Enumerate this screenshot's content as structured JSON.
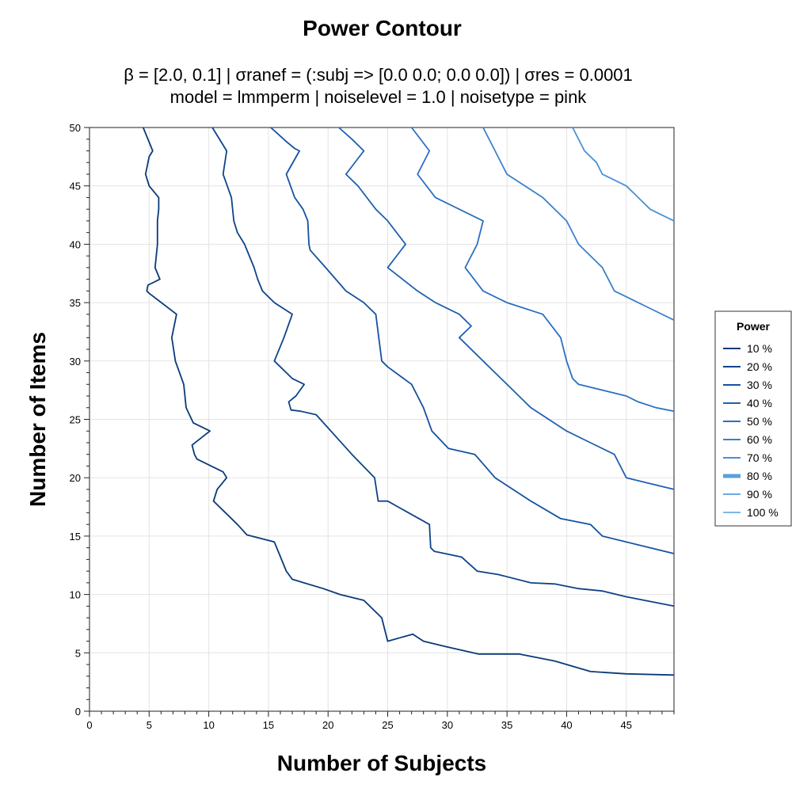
{
  "chart_data": {
    "type": "line",
    "title": "Power Contour",
    "subtitle_line1": "β = [2.0, 0.1]   |   σranef = (:subj => [0.0 0.0; 0.0 0.0])   |   σres = 0.0001",
    "subtitle_line2": "model = lmmperm   |   noiselevel = 1.0   |   noisetype = pink",
    "xlabel": "Number of Subjects",
    "ylabel": "Number of Items",
    "xlim": [
      0,
      49
    ],
    "ylim": [
      0,
      50
    ],
    "xticks": [
      0,
      5,
      10,
      15,
      20,
      25,
      30,
      35,
      40,
      45
    ],
    "yticks": [
      0,
      5,
      10,
      15,
      20,
      25,
      30,
      35,
      40,
      45,
      50
    ],
    "grid": true,
    "legend": {
      "title": "Power",
      "position": "right",
      "entries": [
        "10 %",
        "20 %",
        "30 %",
        "40 %",
        "50 %",
        "60 %",
        "70 %",
        "80 %",
        "90 %",
        "100 %"
      ]
    },
    "series": [
      {
        "name": "10 %",
        "color": "#0a3a78",
        "x": [
          4.5,
          5.3,
          5.0,
          4.7,
          5.0,
          5.8,
          5.8,
          5.7,
          5.7,
          5.7,
          5.6,
          5.5,
          5.9,
          4.9,
          4.8,
          5.0,
          7.3,
          6.9,
          7.2,
          7.9,
          8.0,
          8.1,
          8.7,
          10.1,
          8.6,
          8.8,
          9.0,
          11.2,
          11.5,
          10.7,
          10.4,
          12.4,
          13.2,
          15.5,
          16.5,
          17.0,
          19.6,
          21.0,
          23.0,
          24.5,
          25.0,
          27.1,
          28.0,
          30.0,
          32.6,
          36.0,
          39.0,
          42.0,
          45.0,
          49.0
        ],
        "y": [
          50.0,
          48.0,
          47.5,
          46.0,
          45.0,
          44.0,
          43.0,
          42.0,
          41.0,
          40.0,
          39.0,
          38.0,
          37.0,
          36.5,
          36.0,
          35.8,
          34.0,
          32.0,
          30.0,
          28.0,
          27.0,
          26.0,
          24.7,
          24.0,
          22.8,
          22.0,
          21.6,
          20.5,
          20.0,
          19.0,
          18.0,
          16.0,
          15.1,
          14.5,
          12.0,
          11.3,
          10.5,
          10.0,
          9.5,
          8.0,
          6.0,
          6.6,
          6.0,
          5.5,
          4.9,
          4.9,
          4.3,
          3.4,
          3.2,
          3.1
        ]
      },
      {
        "name": "20 %",
        "color": "#0d4488",
        "x": [
          10.3,
          11.5,
          11.2,
          11.9,
          12.0,
          12.1,
          12.4,
          13.0,
          13.8,
          14.1,
          14.5,
          15.5,
          17.0,
          16.3,
          15.5,
          17.0,
          18.0,
          17.3,
          16.7,
          16.9,
          17.7,
          19.0,
          22.0,
          23.9,
          24.2,
          25.0,
          28.5,
          28.6,
          28.9,
          31.2,
          32.5,
          34.3,
          37.0,
          39.0,
          41.0,
          43.0,
          45.0,
          49.0
        ],
        "y": [
          50.0,
          48.0,
          46.0,
          44.0,
          43.0,
          42.0,
          41.0,
          40.0,
          38.0,
          37.0,
          36.0,
          35.0,
          34.0,
          32.0,
          30.0,
          28.5,
          28.0,
          27.0,
          26.5,
          25.8,
          25.7,
          25.4,
          22.0,
          20.0,
          18.0,
          18.0,
          16.0,
          14.0,
          13.7,
          13.2,
          12.0,
          11.7,
          11.0,
          10.9,
          10.5,
          10.3,
          9.8,
          9.0
        ]
      },
      {
        "name": "30 %",
        "color": "#1552a1",
        "x": [
          15.2,
          16.5,
          17.2,
          17.6,
          16.5,
          17.2,
          17.9,
          18.3,
          18.4,
          18.5,
          19.8,
          21.5,
          23.0,
          23.5,
          24.0,
          24.5,
          25.0,
          27.0,
          28.0,
          28.7,
          30.1,
          32.3,
          34.0,
          37.0,
          39.5,
          42.0,
          43.0,
          49.0
        ],
        "y": [
          50.0,
          48.8,
          48.2,
          48.0,
          46.0,
          44.0,
          43.0,
          42.0,
          40.0,
          39.5,
          38.0,
          36.0,
          35.0,
          34.5,
          34.0,
          30.0,
          29.5,
          28.0,
          26.0,
          24.0,
          22.5,
          22.0,
          20.0,
          18.0,
          16.5,
          16.0,
          15.0,
          13.5
        ]
      },
      {
        "name": "40 %",
        "color": "#1f61b2",
        "x": [
          20.9,
          22.0,
          23.0,
          21.5,
          22.5,
          24.0,
          25.0,
          26.5,
          25.0,
          27.5,
          29.0,
          31.0,
          32.0,
          31.0,
          33.0,
          36.0,
          37.0,
          40.0,
          42.0,
          44.0,
          45.0,
          47.0,
          49.0
        ],
        "y": [
          50.0,
          49.0,
          48.0,
          46.0,
          45.0,
          43.0,
          42.0,
          40.0,
          38.0,
          36.0,
          35.0,
          34.0,
          33.0,
          32.0,
          30.0,
          27.0,
          26.0,
          24.0,
          23.0,
          22.0,
          20.0,
          19.5,
          19.0
        ]
      },
      {
        "name": "50 %",
        "color": "#2a70c2",
        "x": [
          27.0,
          28.5,
          27.5,
          29.0,
          31.0,
          33.0,
          32.5,
          31.5,
          33.0,
          35.0,
          38.0,
          39.5,
          40.0,
          40.5,
          41.0,
          45.0,
          46.0,
          47.5,
          49.0
        ],
        "y": [
          50.0,
          48.0,
          46.0,
          44.0,
          43.0,
          42.0,
          40.0,
          38.0,
          36.0,
          35.0,
          34.0,
          32.0,
          30.0,
          28.5,
          28.0,
          27.0,
          26.5,
          26.0,
          25.7
        ]
      },
      {
        "name": "60 %",
        "color": "#3b80cc",
        "x": [
          33.0,
          34.0,
          35.0,
          38.0,
          40.0,
          41.0,
          43.0,
          44.0,
          45.0,
          46.0,
          47.0,
          49.0
        ],
        "y": [
          50.0,
          48.0,
          46.0,
          44.0,
          42.0,
          40.0,
          38.0,
          36.0,
          35.5,
          35.0,
          34.5,
          33.5
        ]
      },
      {
        "name": "70 %",
        "color": "#4a90d6",
        "x": [
          40.5,
          41.5,
          42.5,
          43.0,
          45.0,
          46.0,
          47.0,
          48.0,
          49.0
        ],
        "y": [
          50.0,
          48.0,
          47.0,
          46.0,
          45.0,
          44.0,
          43.0,
          42.5,
          42.0
        ]
      },
      {
        "name": "80 %",
        "color": "#5b9fdc",
        "x": [],
        "y": []
      },
      {
        "name": "90 %",
        "color": "#6aabe2",
        "x": [],
        "y": []
      },
      {
        "name": "100 %",
        "color": "#7bb8e8",
        "x": [],
        "y": []
      }
    ]
  }
}
